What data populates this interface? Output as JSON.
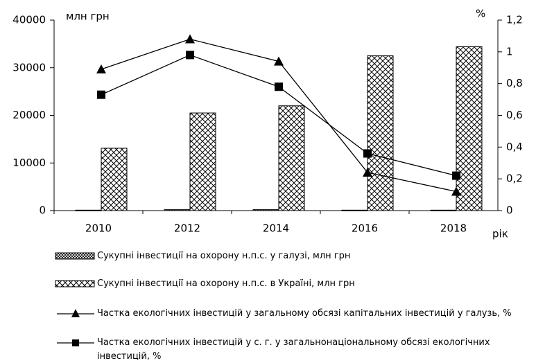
{
  "chart_data": {
    "type": "bar",
    "y_label": "млн грн",
    "y2_label": "%",
    "x_label": "рік",
    "categories": [
      "2010",
      "2012",
      "2014",
      "2016",
      "2018"
    ],
    "ylim": [
      0,
      40000
    ],
    "yticks": [
      0,
      10000,
      20000,
      30000,
      40000
    ],
    "y2lim": [
      0,
      1.2
    ],
    "y2ticks": [
      0,
      {
        "value": 0.2,
        "label": "0,2"
      },
      {
        "value": 0.4,
        "label": "0,4"
      },
      {
        "value": 0.6,
        "label": "0,6"
      },
      {
        "value": 0.8,
        "label": "0,8"
      },
      1,
      {
        "value": 1.2,
        "label": "1,2"
      }
    ],
    "series": [
      {
        "name": "Сукупні інвестиції на охорону н.п.с. у галузі, млн грн",
        "type": "bar",
        "color": "#000000",
        "values": [
          100,
          200,
          200,
          100,
          100
        ]
      },
      {
        "name": "Сукупні інвестиції на охорону н.п.с. в Україні, млн грн",
        "type": "bar",
        "color": "#000000",
        "values": [
          13100,
          20500,
          22000,
          32500,
          34400
        ]
      },
      {
        "name": "Частка екологічних інвестицій у загальному обсязі капітальних інвестицій у галузь, %",
        "type": "line",
        "marker": "triangle",
        "axis": "y2",
        "color": "#000000",
        "values": [
          0.89,
          1.08,
          0.94,
          0.24,
          0.12
        ]
      },
      {
        "name": "Частка екологічних інвестицій у с. г. у загальнонаціональному обсязі екологічних інвестицій, %",
        "type": "line",
        "marker": "square",
        "axis": "y2",
        "color": "#000000",
        "values": [
          0.73,
          0.98,
          0.78,
          0.36,
          0.22
        ]
      }
    ]
  }
}
